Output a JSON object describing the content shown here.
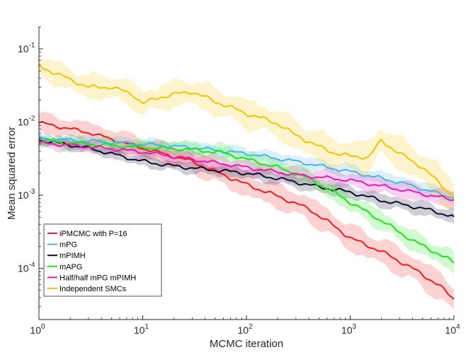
{
  "chart_data": {
    "type": "line",
    "xscale": "log",
    "yscale": "log",
    "xlabel": "MCMC iteration",
    "ylabel": "Mean squared error",
    "xlim": [
      1,
      10000
    ],
    "ylim": [
      2e-05,
      0.2
    ],
    "x_ticks": [
      {
        "value": 1,
        "base": "10",
        "exp": "0"
      },
      {
        "value": 10,
        "base": "10",
        "exp": "1"
      },
      {
        "value": 100,
        "base": "10",
        "exp": "2"
      },
      {
        "value": 1000,
        "base": "10",
        "exp": "3"
      },
      {
        "value": 10000,
        "base": "10",
        "exp": "4"
      }
    ],
    "y_ticks": [
      {
        "value": 0.0001,
        "base": "10",
        "exp": "-4"
      },
      {
        "value": 0.001,
        "base": "10",
        "exp": "-3"
      },
      {
        "value": 0.01,
        "base": "10",
        "exp": "-2"
      },
      {
        "value": 0.1,
        "base": "10",
        "exp": "-1"
      }
    ],
    "legend_position": "bottom-left",
    "series": [
      {
        "name": "iPMCMC with P=16",
        "color": "#ee1c1c",
        "x": [
          1,
          3,
          10,
          30,
          60,
          100,
          200,
          400,
          700,
          1000,
          2000,
          4000,
          7000,
          10000
        ],
        "y": [
          0.0098,
          0.0072,
          0.0044,
          0.0029,
          0.0019,
          0.0014,
          0.00097,
          0.00065,
          0.00038,
          0.00026,
          0.00017,
          0.0001,
          6e-05,
          3.8e-05
        ],
        "band": 1.45
      },
      {
        "name": "mPG",
        "color": "#4db3e6",
        "x": [
          1,
          3,
          10,
          30,
          100,
          300,
          1000,
          3000,
          10000
        ],
        "y": [
          0.006,
          0.0055,
          0.005,
          0.0045,
          0.0037,
          0.0029,
          0.0021,
          0.0015,
          0.00092
        ],
        "band": 1.2
      },
      {
        "name": "mPIMH",
        "color": "#0d0d33",
        "x": [
          1,
          3,
          10,
          20,
          50,
          100,
          200,
          500,
          1000,
          2000,
          5000,
          10000
        ],
        "y": [
          0.0057,
          0.0044,
          0.0029,
          0.0025,
          0.0022,
          0.002,
          0.0017,
          0.0013,
          0.0011,
          0.00085,
          0.00066,
          0.00051
        ],
        "band": 1.2
      },
      {
        "name": "mAPG",
        "color": "#1ae61a",
        "x": [
          1,
          3,
          10,
          30,
          60,
          100,
          200,
          400,
          700,
          1000,
          2000,
          4000,
          7000,
          10000
        ],
        "y": [
          0.0055,
          0.005,
          0.0045,
          0.0042,
          0.0038,
          0.0031,
          0.0024,
          0.0017,
          0.0011,
          0.0008,
          0.00045,
          0.00024,
          0.00016,
          0.00012
        ],
        "band": 1.3
      },
      {
        "name": "Half/half mPG mPIMH",
        "color": "#e61ab3",
        "x": [
          1,
          3,
          10,
          30,
          100,
          300,
          1000,
          3000,
          10000
        ],
        "y": [
          0.0052,
          0.0046,
          0.0039,
          0.0031,
          0.0024,
          0.0019,
          0.0016,
          0.0012,
          0.00086
        ],
        "band": 1.25
      },
      {
        "name": "Independent SMCs",
        "color": "#f5c400",
        "x": [
          1,
          2,
          3,
          5,
          8,
          10,
          15,
          20,
          30,
          50,
          70,
          100,
          150,
          200,
          300,
          500,
          700,
          1000,
          1500,
          2000,
          3000,
          5000,
          10000
        ],
        "y": [
          0.058,
          0.038,
          0.03,
          0.03,
          0.024,
          0.018,
          0.022,
          0.024,
          0.026,
          0.019,
          0.016,
          0.013,
          0.011,
          0.0095,
          0.0066,
          0.0046,
          0.0038,
          0.0034,
          0.0033,
          0.0056,
          0.0037,
          0.0024,
          0.00095
        ],
        "band": 1.55
      }
    ]
  }
}
